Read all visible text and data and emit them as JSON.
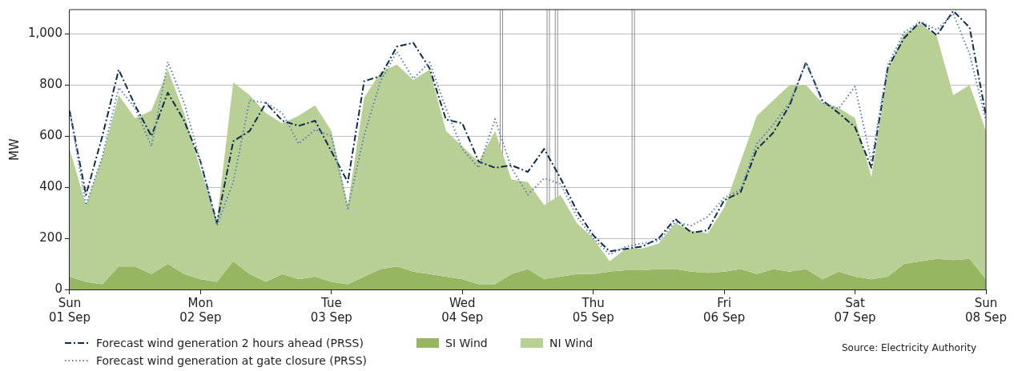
{
  "chart_data": {
    "type": "area",
    "ylabel": "MW",
    "stacked": true,
    "grid": "y",
    "legend": "bottom",
    "x": [
      "--09-01T00:00",
      "--09-01T03:00",
      "--09-01T06:00",
      "--09-01T09:00",
      "--09-01T12:00",
      "--09-01T15:00",
      "--09-01T18:00",
      "--09-01T21:00",
      "--09-02T00:00",
      "--09-02T03:00",
      "--09-02T06:00",
      "--09-02T09:00",
      "--09-02T12:00",
      "--09-02T15:00",
      "--09-02T18:00",
      "--09-02T21:00",
      "--09-03T00:00",
      "--09-03T03:00",
      "--09-03T06:00",
      "--09-03T09:00",
      "--09-03T12:00",
      "--09-03T15:00",
      "--09-03T18:00",
      "--09-03T21:00",
      "--09-04T00:00",
      "--09-04T03:00",
      "--09-04T06:00",
      "--09-04T09:00",
      "--09-04T12:00",
      "--09-04T15:00",
      "--09-04T18:00",
      "--09-04T21:00",
      "--09-05T00:00",
      "--09-05T03:00",
      "--09-05T06:00",
      "--09-05T09:00",
      "--09-05T12:00",
      "--09-05T15:00",
      "--09-05T18:00",
      "--09-05T21:00",
      "--09-06T00:00",
      "--09-06T03:00",
      "--09-06T06:00",
      "--09-06T09:00",
      "--09-06T12:00",
      "--09-06T15:00",
      "--09-06T18:00",
      "--09-06T21:00",
      "--09-07T00:00",
      "--09-07T03:00",
      "--09-07T06:00",
      "--09-07T09:00",
      "--09-07T12:00",
      "--09-07T15:00",
      "--09-07T18:00",
      "--09-07T21:00",
      "--09-08T00:00"
    ],
    "series": [
      {
        "name": "Forecast wind generation 2 hours ahead (PRSS)",
        "type": "line",
        "line_style": "dashdot",
        "color": "#0d2c48",
        "values": [
          700,
          370,
          600,
          860,
          720,
          600,
          770,
          660,
          500,
          260,
          580,
          620,
          730,
          660,
          640,
          660,
          540,
          420,
          815,
          835,
          950,
          965,
          865,
          665,
          650,
          500,
          476,
          486,
          460,
          550,
          435,
          308,
          212,
          149,
          159,
          168,
          200,
          276,
          222,
          232,
          349,
          380,
          549,
          613,
          720,
          889,
          740,
          690,
          635,
          476,
          867,
          984,
          1048,
          994,
          1090,
          1025,
          680
        ]
      },
      {
        "name": "SI Wind",
        "color": "#97b661",
        "values": [
          50,
          30,
          20,
          90,
          90,
          60,
          100,
          60,
          40,
          30,
          110,
          60,
          30,
          60,
          40,
          50,
          30,
          20,
          50,
          80,
          90,
          70,
          60,
          50,
          40,
          20,
          20,
          60,
          80,
          40,
          50,
          60,
          60,
          70,
          75,
          75,
          80,
          80,
          70,
          65,
          70,
          80,
          60,
          80,
          70,
          80,
          40,
          70,
          50,
          40,
          50,
          100,
          110,
          120,
          115,
          120,
          40
        ]
      },
      {
        "name": "NI Wind",
        "color": "#b8cf96",
        "values": [
          500,
          300,
          500,
          670,
          580,
          640,
          760,
          630,
          430,
          240,
          700,
          700,
          660,
          590,
          640,
          670,
          590,
          310,
          700,
          770,
          790,
          750,
          800,
          570,
          520,
          480,
          600,
          370,
          340,
          290,
          320,
          200,
          140,
          40,
          85,
          85,
          100,
          180,
          160,
          155,
          250,
          420,
          620,
          660,
          730,
          720,
          690,
          640,
          620,
          400,
          810,
          900,
          930,
          870,
          645,
          680,
          580
        ]
      },
      {
        "name": "Forecast wind generation at gate closure (PRSS)",
        "type": "line",
        "line_style": "dotted",
        "color": "#5a7bbd",
        "values": [
          700,
          330,
          520,
          790,
          710,
          560,
          890,
          730,
          500,
          250,
          420,
          740,
          730,
          690,
          570,
          625,
          600,
          317,
          603,
          815,
          930,
          825,
          889,
          708,
          549,
          476,
          667,
          476,
          371,
          435,
          413,
          285,
          200,
          137,
          168,
          180,
          190,
          263,
          250,
          285,
          359,
          390,
          571,
          645,
          730,
          889,
          730,
          708,
          794,
          500,
          879,
          1006,
          1048,
          1016,
          1079,
          921,
          660
        ]
      }
    ],
    "xlim": [
      "--09-01T00:00",
      "--09-08T00:00"
    ],
    "xticks": [
      {
        "value": "--09-01T00:00",
        "label": "Sun 01 Sep"
      },
      {
        "value": "--09-02T00:00",
        "label": "Mon 02 Sep"
      },
      {
        "value": "--09-03T00:00",
        "label": "Tue 03 Sep"
      },
      {
        "value": "--09-04T00:00",
        "label": "Wed 04 Sep"
      },
      {
        "value": "--09-05T00:00",
        "label": "Thu 05 Sep"
      },
      {
        "value": "--09-06T00:00",
        "label": "Fri 06 Sep"
      },
      {
        "value": "--09-07T00:00",
        "label": "Sat 07 Sep"
      },
      {
        "value": "--09-08T00:00",
        "label": "Sun 08 Sep"
      }
    ],
    "ylim": [
      0,
      1095
    ],
    "yticks": [
      0,
      200,
      400,
      600,
      800,
      {
        "value": 1000,
        "label": "1,000"
      }
    ],
    "ref_lines": [
      {
        "axis": "x",
        "value": "--09-04T07:10",
        "color": "#8c8c8c"
      },
      {
        "axis": "x",
        "value": "--09-04T15:45",
        "color": "#8c8c8c"
      },
      {
        "axis": "x",
        "value": "--09-04T17:15",
        "color": "#8c8c8c"
      },
      {
        "axis": "x",
        "value": "--09-05T07:20",
        "color": "#8c8c8c"
      }
    ],
    "annotations": [
      "Source: Electricity Authority"
    ]
  }
}
